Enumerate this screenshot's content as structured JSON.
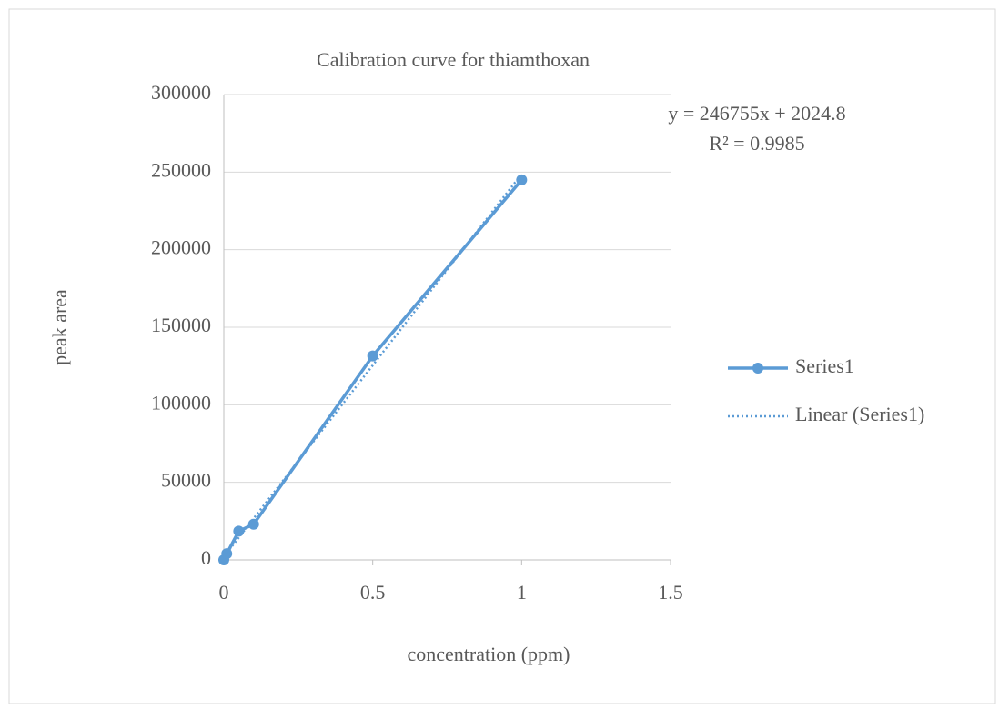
{
  "chart_data": {
    "type": "scatter-line",
    "title": "Calibration  curve  for thiamthoxan",
    "x_label": "concentration  (ppm)",
    "y_label": "peak  area",
    "annotations": [
      "y = 246755x + 2024.8",
      "R² = 0.9985"
    ],
    "series": [
      {
        "name": "Series1",
        "color": "#5b9bd5",
        "style": "solid-markers",
        "x": [
          0,
          0.01,
          0.05,
          0.1,
          0.5,
          1
        ],
        "values": [
          0,
          4000,
          18500,
          23000,
          131500,
          245000
        ]
      },
      {
        "name": "Linear (Series1)",
        "color": "#5b9bd5",
        "style": "dotted",
        "x": [
          0,
          1
        ],
        "values": [
          2024.8,
          248779.8
        ]
      }
    ],
    "xlim": [
      0,
      1.5
    ],
    "xticks": [
      0,
      0.5,
      1,
      1.5
    ],
    "ylim": [
      0,
      300000
    ],
    "yticks": [
      0,
      50000,
      100000,
      150000,
      200000,
      250000,
      300000
    ],
    "grid": true,
    "legend": "right"
  }
}
